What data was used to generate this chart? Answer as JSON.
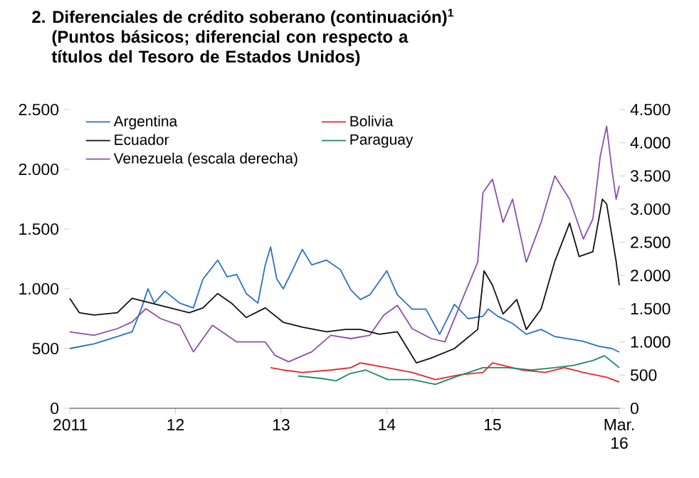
{
  "chart_data": {
    "type": "line",
    "title": "2. Diferenciales de crédito soberano (continuación)$^{1}$",
    "subtitle": "(Puntos básicos; diferencial con respecto a títulos del Tesoro de Estados Unidos)",
    "xlim": [
      2011,
      2016.2
    ],
    "xticks": [
      {
        "value": 2011,
        "label": "2011"
      },
      {
        "value": 2012,
        "label": "12"
      },
      {
        "value": 2013,
        "label": "13"
      },
      {
        "value": 2014,
        "label": "14"
      },
      {
        "value": 2015,
        "label": "15"
      },
      {
        "value": 2016.2,
        "label": "Mar. 16"
      }
    ],
    "ylim": [
      0,
      2500
    ],
    "yticks": [
      {
        "value": 0,
        "label": "0"
      },
      {
        "value": 500,
        "label": "500"
      },
      {
        "value": 1000,
        "label": "1.000"
      },
      {
        "value": 1500,
        "label": "1.500"
      },
      {
        "value": 2000,
        "label": "2.000"
      },
      {
        "value": 2500,
        "label": "2.500"
      }
    ],
    "y2lim": [
      0,
      4500
    ],
    "y2ticks": [
      {
        "value": 0,
        "label": "0"
      },
      {
        "value": 500,
        "label": "500"
      },
      {
        "value": 1000,
        "label": "1.000"
      },
      {
        "value": 1500,
        "label": "1.500"
      },
      {
        "value": 2000,
        "label": "2.000"
      },
      {
        "value": 2500,
        "label": "2.500"
      },
      {
        "value": 3000,
        "label": "3.000"
      },
      {
        "value": 3500,
        "label": "3.500"
      },
      {
        "value": 4000,
        "label": "4.000"
      },
      {
        "value": 4500,
        "label": "4.500"
      }
    ],
    "legend": "top left",
    "series": [
      {
        "name": "Argentina",
        "color": "#2b6fc4",
        "x": [
          2011.0,
          2011.23,
          2011.45,
          2011.59,
          2011.68,
          2011.74,
          2011.8,
          2011.9,
          2012.04,
          2012.17,
          2012.26,
          2012.4,
          2012.49,
          2012.58,
          2012.67,
          2012.78,
          2012.85,
          2012.9,
          2012.96,
          2013.02,
          2013.11,
          2013.2,
          2013.29,
          2013.43,
          2013.56,
          2013.66,
          2013.75,
          2013.84,
          2014.0,
          2014.1,
          2014.24,
          2014.37,
          2014.5,
          2014.64,
          2014.77,
          2014.91,
          2014.96,
          2015.05,
          2015.19,
          2015.32,
          2015.46,
          2015.59,
          2015.73,
          2015.86,
          2016.0,
          2016.13,
          2016.2
        ],
        "values": [
          500,
          540,
          600,
          640,
          840,
          1000,
          880,
          980,
          880,
          840,
          1080,
          1240,
          1100,
          1120,
          960,
          880,
          1200,
          1350,
          1080,
          1000,
          1160,
          1330,
          1200,
          1240,
          1160,
          990,
          910,
          950,
          1150,
          950,
          830,
          830,
          620,
          870,
          750,
          770,
          830,
          770,
          710,
          620,
          660,
          600,
          580,
          560,
          520,
          500,
          470
        ]
      },
      {
        "name": "Bolivia",
        "color": "#e8262b",
        "x": [
          2012.9,
          2013.02,
          2013.2,
          2013.47,
          2013.66,
          2013.75,
          2014.0,
          2014.24,
          2014.46,
          2014.69,
          2014.91,
          2015.0,
          2015.28,
          2015.5,
          2015.68,
          2015.86,
          2016.08,
          2016.2
        ],
        "values": [
          340,
          320,
          300,
          320,
          340,
          380,
          340,
          300,
          240,
          280,
          300,
          380,
          320,
          300,
          340,
          300,
          260,
          220
        ]
      },
      {
        "name": "Ecuador",
        "color": "#111111",
        "x": [
          2011.0,
          2011.09,
          2011.23,
          2011.45,
          2011.59,
          2011.77,
          2011.95,
          2012.13,
          2012.26,
          2012.4,
          2012.53,
          2012.67,
          2012.85,
          2013.02,
          2013.2,
          2013.43,
          2013.61,
          2013.75,
          2013.93,
          2014.1,
          2014.28,
          2014.42,
          2014.64,
          2014.86,
          2014.92,
          2015.0,
          2015.1,
          2015.23,
          2015.32,
          2015.46,
          2015.59,
          2015.73,
          2015.82,
          2015.95,
          2016.04,
          2016.08,
          2016.17,
          2016.2
        ],
        "values": [
          920,
          800,
          780,
          800,
          920,
          880,
          840,
          800,
          840,
          960,
          880,
          760,
          840,
          720,
          680,
          640,
          660,
          660,
          620,
          640,
          380,
          420,
          500,
          660,
          1150,
          1030,
          790,
          910,
          660,
          830,
          1230,
          1550,
          1270,
          1310,
          1750,
          1710,
          1230,
          1030
        ]
      },
      {
        "name": "Paraguay",
        "color": "#1a8a6a",
        "x": [
          2013.16,
          2013.38,
          2013.52,
          2013.65,
          2013.8,
          2014.01,
          2014.24,
          2014.46,
          2014.64,
          2014.91,
          2015.14,
          2015.37,
          2015.59,
          2015.77,
          2015.95,
          2016.06,
          2016.2
        ],
        "values": [
          270,
          250,
          230,
          290,
          320,
          240,
          240,
          200,
          260,
          340,
          340,
          320,
          340,
          360,
          400,
          440,
          340
        ]
      },
      {
        "name": "Venezuela (escala derecha)",
        "color": "#8e4fa8",
        "axis": "y2",
        "x": [
          2011.0,
          2011.23,
          2011.45,
          2011.59,
          2011.72,
          2011.86,
          2012.04,
          2012.17,
          2012.35,
          2012.58,
          2012.85,
          2012.94,
          2013.07,
          2013.29,
          2013.47,
          2013.66,
          2013.84,
          2013.97,
          2014.1,
          2014.24,
          2014.42,
          2014.55,
          2014.73,
          2014.86,
          2014.91,
          2015.0,
          2015.1,
          2015.19,
          2015.32,
          2015.46,
          2015.59,
          2015.73,
          2015.86,
          2015.95,
          2016.02,
          2016.08,
          2016.13,
          2016.17,
          2016.2
        ],
        "values": [
          1150,
          1100,
          1200,
          1300,
          1500,
          1350,
          1250,
          850,
          1250,
          1000,
          1000,
          800,
          700,
          850,
          1100,
          1050,
          1100,
          1400,
          1550,
          1200,
          1050,
          1000,
          1700,
          2200,
          3250,
          3450,
          2800,
          3150,
          2200,
          2800,
          3500,
          3150,
          2550,
          2850,
          3800,
          4250,
          3600,
          3150,
          3350
        ]
      }
    ]
  }
}
